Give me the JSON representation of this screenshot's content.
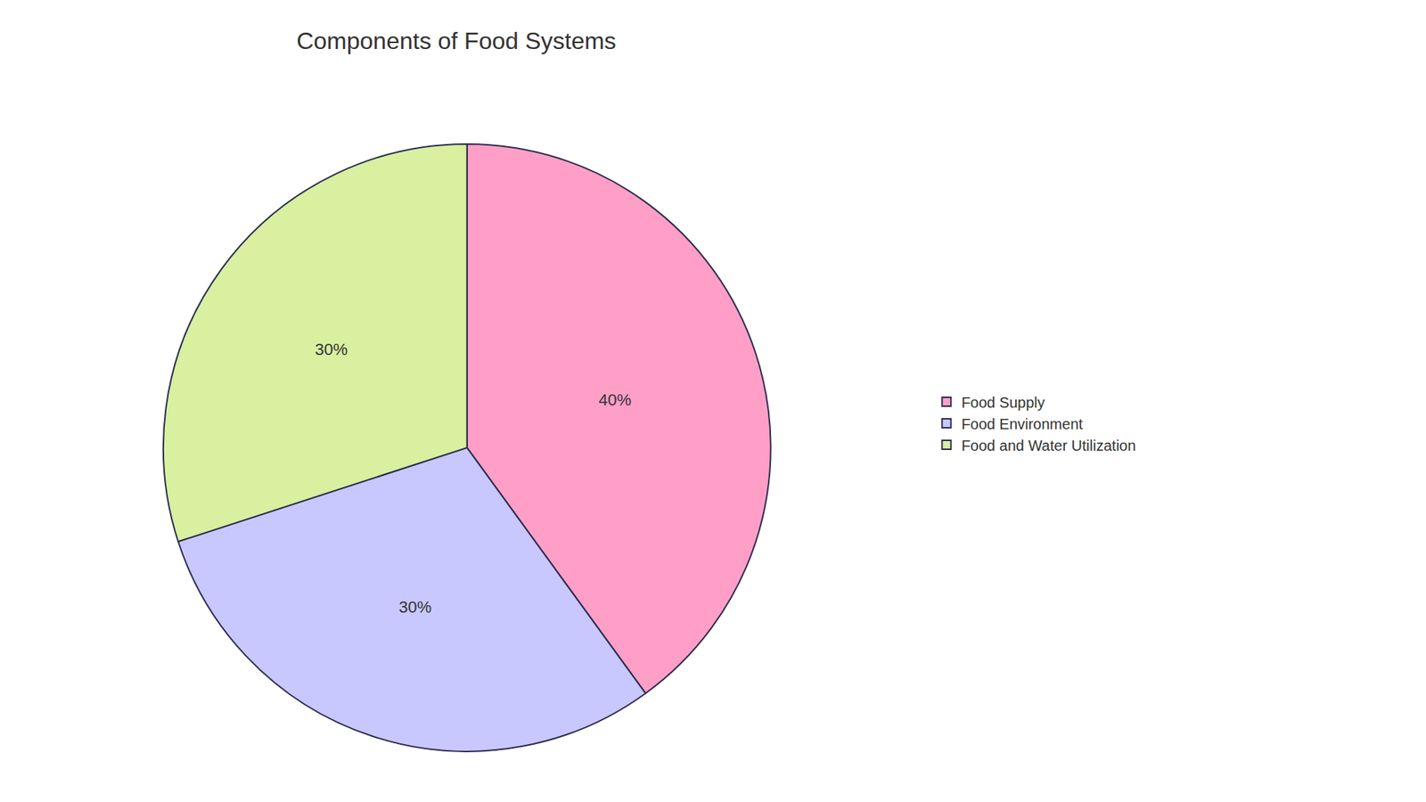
{
  "chart_data": {
    "type": "pie",
    "title": "Components of Food Systems",
    "categories": [
      "Food Supply",
      "Food Environment",
      "Food and Water Utilization"
    ],
    "values": [
      40,
      30,
      30
    ],
    "value_labels": [
      "40%",
      "30%",
      "30%"
    ],
    "colors": [
      "#FF9FC8",
      "#C8C8FF",
      "#D8F0A0"
    ],
    "data_labels": true,
    "legend": "right"
  }
}
